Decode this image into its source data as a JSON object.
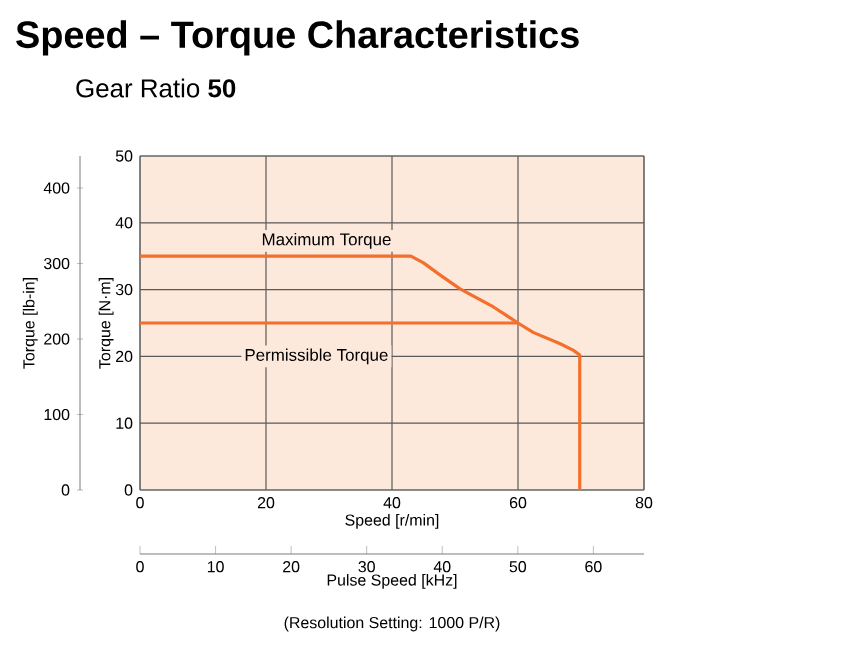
{
  "chart_data": {
    "type": "line",
    "title": "Speed – Torque Characteristics",
    "subtitle": "Gear Ratio **50**",
    "xlabel": "Speed [r/min]",
    "ylabel": "Torque [N·m]",
    "y2label": "Torque [lb-in]",
    "x2label": "Pulse Speed [kHz]",
    "xlim": [
      0,
      80
    ],
    "xticks": [
      0,
      20,
      40,
      60,
      80
    ],
    "ylim": [
      0,
      50
    ],
    "yticks": [
      0,
      10,
      20,
      30,
      40,
      50
    ],
    "y2lim": [
      0,
      442.5
    ],
    "y2ticks": [
      0,
      100,
      200,
      300,
      400
    ],
    "x2lim": [
      0,
      66.7
    ],
    "x2ticks": [
      0,
      10,
      20,
      30,
      40,
      50,
      60
    ],
    "grid": true,
    "marker": "none",
    "line_style": "solid",
    "series": [
      {
        "color": "#f36f2b",
        "x": [
          0,
          43,
          45,
          47.6,
          50.8,
          56.1,
          60,
          62.4,
          66.7,
          68.8,
          69.8,
          69.8
        ],
        "values": [
          35,
          35,
          34,
          32.2,
          30.1,
          27.4,
          25,
          23.6,
          21.9,
          20.9,
          20.2,
          0
        ]
      },
      {
        "color": "#f36f2b",
        "x": [
          0,
          60
        ],
        "values": [
          25,
          25
        ]
      }
    ],
    "annotations": [
      "Maximum Torque",
      "Permissible Torque",
      "(Resolution Setting: 1000 P/R)"
    ]
  }
}
